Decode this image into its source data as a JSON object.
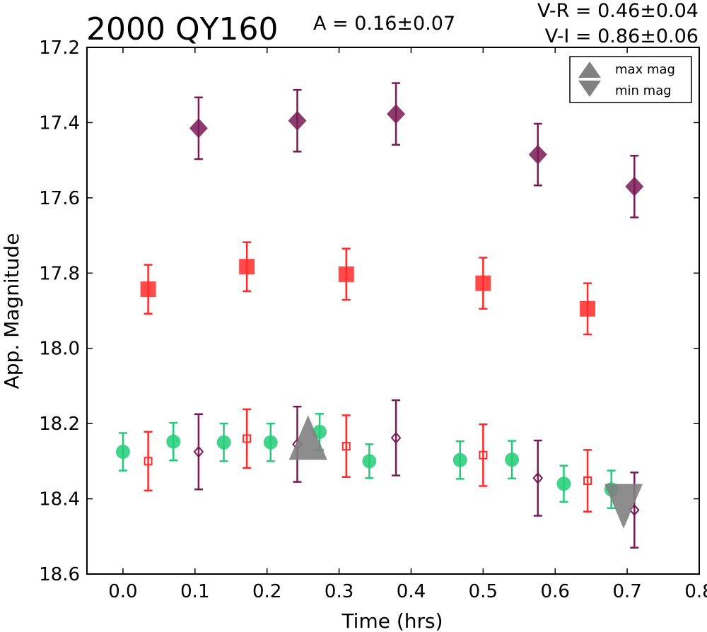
{
  "chart_data": {
    "type": "scatter",
    "title": "2000 QY160",
    "amplitude": "A  = 0.16±0.07",
    "color_vr": "V-R = 0.46±0.04",
    "color_vi": "V-I  = 0.86±0.06",
    "xlabel": "Time (hrs)",
    "ylabel": "App. Magnitude",
    "xlim": [
      -0.05,
      0.8
    ],
    "ylim": [
      18.6,
      17.2
    ],
    "y_inverted": true,
    "xticks": [
      "0.0",
      "0.1",
      "0.2",
      "0.3",
      "0.4",
      "0.5",
      "0.6",
      "0.7",
      "0.8"
    ],
    "yticks": [
      "17.2",
      "17.4",
      "17.6",
      "17.8",
      "18.0",
      "18.2",
      "18.4",
      "18.6"
    ],
    "grid": false,
    "legend_position": "top-right",
    "legend": [
      {
        "label": "max mag",
        "marker": "triangle-up",
        "color": "#808080"
      },
      {
        "label": "min mag",
        "marker": "triangle-down",
        "color": "#808080"
      }
    ],
    "series": [
      {
        "marker": "diamond",
        "filled": true,
        "color": "#7a1a55",
        "points": [
          {
            "x": 0.105,
            "y": 17.415,
            "err": 0.082
          },
          {
            "x": 0.242,
            "y": 17.395,
            "err": 0.082
          },
          {
            "x": 0.379,
            "y": 17.377,
            "err": 0.082
          },
          {
            "x": 0.576,
            "y": 17.485,
            "err": 0.082
          },
          {
            "x": 0.71,
            "y": 17.57,
            "err": 0.082
          }
        ]
      },
      {
        "marker": "square",
        "filled": true,
        "color": "#ff2a2a",
        "points": [
          {
            "x": 0.035,
            "y": 17.843,
            "err": 0.065
          },
          {
            "x": 0.172,
            "y": 17.783,
            "err": 0.065
          },
          {
            "x": 0.31,
            "y": 17.803,
            "err": 0.068
          },
          {
            "x": 0.5,
            "y": 17.827,
            "err": 0.068
          },
          {
            "x": 0.645,
            "y": 17.895,
            "err": 0.068
          }
        ]
      },
      {
        "marker": "circle",
        "filled": true,
        "color": "#22cc77",
        "points": [
          {
            "x": 0.0,
            "y": 18.275,
            "err": 0.05
          },
          {
            "x": 0.07,
            "y": 18.248,
            "err": 0.05
          },
          {
            "x": 0.14,
            "y": 18.25,
            "err": 0.05
          },
          {
            "x": 0.205,
            "y": 18.25,
            "err": 0.05
          },
          {
            "x": 0.273,
            "y": 18.222,
            "err": 0.048
          },
          {
            "x": 0.342,
            "y": 18.3,
            "err": 0.045
          },
          {
            "x": 0.468,
            "y": 18.297,
            "err": 0.05
          },
          {
            "x": 0.54,
            "y": 18.296,
            "err": 0.05
          },
          {
            "x": 0.612,
            "y": 18.36,
            "err": 0.048
          },
          {
            "x": 0.678,
            "y": 18.375,
            "err": 0.05
          }
        ]
      },
      {
        "marker": "square",
        "filled": false,
        "color": "#ff2a2a",
        "points": [
          {
            "x": 0.035,
            "y": 18.3,
            "err": 0.078
          },
          {
            "x": 0.172,
            "y": 18.24,
            "err": 0.078
          },
          {
            "x": 0.31,
            "y": 18.26,
            "err": 0.082
          },
          {
            "x": 0.5,
            "y": 18.284,
            "err": 0.082
          },
          {
            "x": 0.645,
            "y": 18.352,
            "err": 0.082
          }
        ]
      },
      {
        "marker": "diamond",
        "filled": false,
        "color": "#7a1a55",
        "points": [
          {
            "x": 0.105,
            "y": 18.275,
            "err": 0.1
          },
          {
            "x": 0.242,
            "y": 18.255,
            "err": 0.1
          },
          {
            "x": 0.379,
            "y": 18.238,
            "err": 0.1
          },
          {
            "x": 0.576,
            "y": 18.345,
            "err": 0.1
          },
          {
            "x": 0.71,
            "y": 18.43,
            "err": 0.1
          }
        ]
      }
    ],
    "markers": [
      {
        "label": "max mag",
        "marker": "triangle-up",
        "x": 0.257,
        "y": 18.257,
        "color": "#808080"
      },
      {
        "label": "min mag",
        "marker": "triangle-down",
        "x": 0.695,
        "y": 18.4,
        "color": "#808080"
      }
    ]
  }
}
